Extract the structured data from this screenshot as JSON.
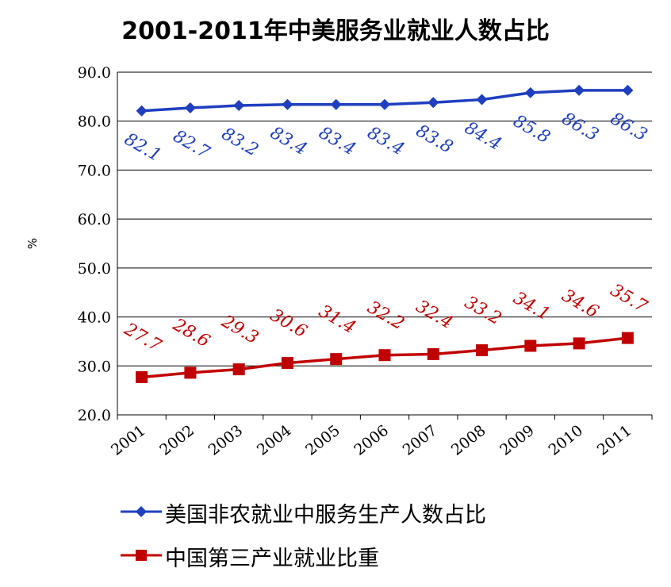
{
  "title": "2001-2011年中美服务业就业人数占比",
  "chart_data": {
    "type": "line",
    "categories": [
      "2001",
      "2002",
      "2003",
      "2004",
      "2005",
      "2006",
      "2007",
      "2008",
      "2009",
      "2010",
      "2011"
    ],
    "ylabel": "%",
    "ylim": [
      20,
      90
    ],
    "yticks": [
      "20.0",
      "30.0",
      "40.0",
      "50.0",
      "60.0",
      "70.0",
      "80.0",
      "90.0"
    ],
    "grid": true,
    "legend_position": "bottom",
    "series": [
      {
        "name": "美国非农就业中服务生产人数占比",
        "marker": "diamond",
        "color": "#1F3FBF",
        "values": [
          82.1,
          82.7,
          83.2,
          83.4,
          83.4,
          83.4,
          83.8,
          84.4,
          85.8,
          86.3,
          86.3
        ],
        "labels": [
          "82.1",
          "82.7",
          "83.2",
          "83.4",
          "83.4",
          "83.4",
          "83.8",
          "84.4",
          "85.8",
          "86.3",
          "86.3"
        ]
      },
      {
        "name": "中国第三产业就业比重",
        "marker": "square",
        "color": "#C00000",
        "values": [
          27.7,
          28.6,
          29.3,
          30.6,
          31.4,
          32.2,
          32.4,
          33.2,
          34.1,
          34.6,
          35.7
        ],
        "labels": [
          "27.7",
          "28.6",
          "29.3",
          "30.6",
          "31.4",
          "32.2",
          "32.4",
          "33.2",
          "34.1",
          "34.6",
          "35.7"
        ]
      }
    ]
  }
}
